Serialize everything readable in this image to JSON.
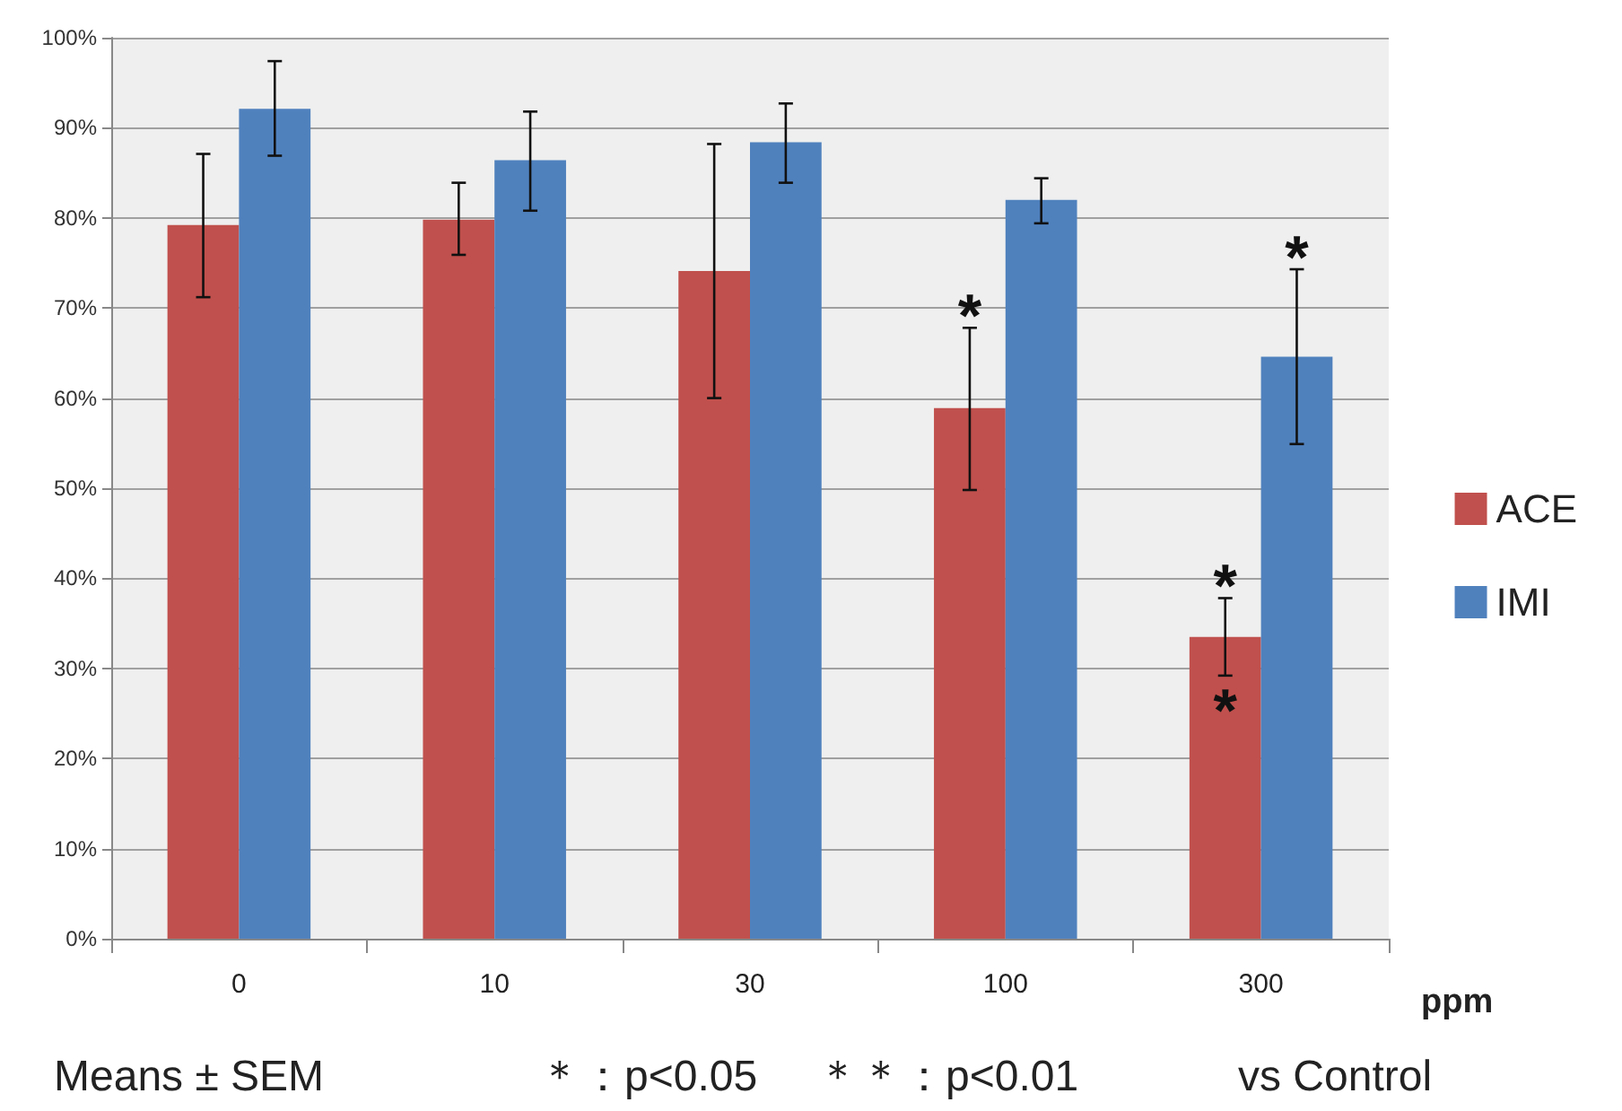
{
  "chart_data": {
    "type": "bar",
    "xlabel": "ppm",
    "categories": [
      "0",
      "10",
      "30",
      "100",
      "300"
    ],
    "series": [
      {
        "name": "ACE",
        "color": "#c0504d",
        "values": [
          79.2,
          79.8,
          74.1,
          58.9,
          33.5
        ],
        "errors": [
          [
            71.2,
            87.1
          ],
          [
            75.9,
            83.9
          ],
          [
            60.0,
            88.2
          ],
          [
            49.8,
            67.8
          ],
          [
            29.2,
            37.8
          ]
        ]
      },
      {
        "name": "IMI",
        "color": "#4f81bd",
        "values": [
          92.1,
          86.4,
          88.4,
          82.0,
          64.6
        ],
        "errors": [
          [
            86.9,
            97.4
          ],
          [
            80.8,
            91.8
          ],
          [
            83.9,
            92.7
          ],
          [
            79.4,
            84.4
          ],
          [
            54.9,
            74.3
          ]
        ]
      }
    ],
    "ylim": [
      0,
      100
    ],
    "yticks": [
      {
        "value": 0,
        "label": "0%"
      },
      {
        "value": 10,
        "label": "10%"
      },
      {
        "value": 20,
        "label": "20%"
      },
      {
        "value": 30,
        "label": "30%"
      },
      {
        "value": 40,
        "label": "40%"
      },
      {
        "value": 50,
        "label": "50%"
      },
      {
        "value": 60,
        "label": "60%"
      },
      {
        "value": 70,
        "label": "70%"
      },
      {
        "value": 80,
        "label": "80%"
      },
      {
        "value": 90,
        "label": "90%"
      },
      {
        "value": 100,
        "label": "100%"
      }
    ],
    "grid": "y",
    "legend": "right",
    "annotations": [
      {
        "text": "*",
        "x": "100",
        "y": 58.9
      },
      {
        "text": "*",
        "x": "300",
        "y": 64.6
      },
      {
        "text": "*",
        "x": "300",
        "y": 37.8
      },
      {
        "text": "*",
        "x": "300",
        "y": 29.2
      },
      "Means ± SEM",
      "＊：p<0.05",
      "＊＊：p<0.01",
      "vs Control"
    ]
  }
}
